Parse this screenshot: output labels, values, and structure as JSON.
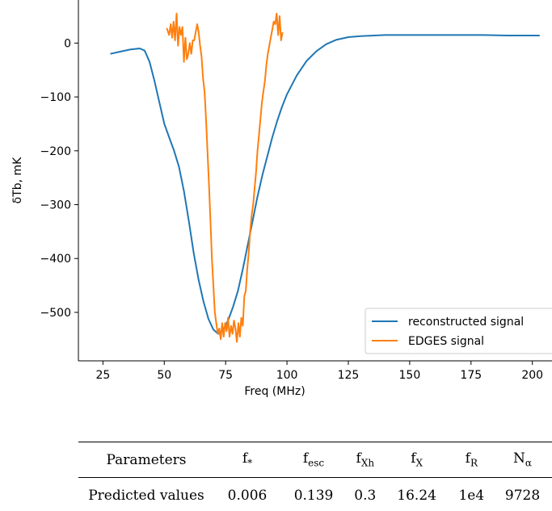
{
  "chart_data": {
    "type": "line",
    "title": "",
    "xlabel": "Freq (MHz)",
    "ylabel": "δTb, mK",
    "xlim": [
      15,
      208
    ],
    "ylim": [
      -590,
      80
    ],
    "xticks": [
      25,
      50,
      75,
      100,
      125,
      150,
      175,
      200
    ],
    "yticks": [
      0,
      -100,
      -200,
      -300,
      -400,
      -500
    ],
    "ytick_labels": [
      "0",
      "−100",
      "−200",
      "−300",
      "−400",
      "−500"
    ],
    "legend": {
      "position": "lower-right",
      "entries": [
        "reconstructed signal",
        "EDGES signal"
      ]
    },
    "series": [
      {
        "name": "reconstructed signal",
        "color": "#1f77b4",
        "x": [
          28,
          32,
          36,
          40,
          42,
          44,
          46,
          48,
          50,
          52,
          54,
          56,
          58,
          60,
          62,
          64,
          66,
          68,
          70,
          72,
          74,
          76,
          78,
          80,
          82,
          84,
          86,
          88,
          90,
          92,
          94,
          96,
          98,
          100,
          104,
          108,
          112,
          116,
          120,
          125,
          130,
          140,
          150,
          160,
          170,
          180,
          190,
          200,
          203
        ],
        "y": [
          -20,
          -16,
          -12,
          -10,
          -14,
          -35,
          -70,
          -110,
          -150,
          -175,
          -200,
          -230,
          -275,
          -330,
          -390,
          -440,
          -480,
          -512,
          -532,
          -540,
          -533,
          -515,
          -490,
          -460,
          -420,
          -375,
          -330,
          -285,
          -245,
          -210,
          -175,
          -145,
          -118,
          -95,
          -60,
          -33,
          -15,
          -2,
          6,
          11,
          13,
          15,
          15,
          15,
          15,
          15,
          14,
          14,
          14
        ]
      },
      {
        "name": "EDGES signal",
        "color": "#ff7f0e",
        "x": [
          51,
          52,
          52.6,
          53.2,
          53.8,
          54.4,
          55,
          55.6,
          56.2,
          56.8,
          57.4,
          58,
          58.6,
          59.2,
          59.8,
          60.4,
          61,
          61.6,
          62.2,
          62.8,
          63.4,
          64,
          64.6,
          65.2,
          65.8,
          66.4,
          67,
          67.6,
          68.2,
          68.8,
          69.4,
          70,
          70.6,
          71.2,
          71.8,
          72.4,
          73,
          73.6,
          74.2,
          74.8,
          75.4,
          76,
          76.6,
          77.2,
          77.8,
          78.4,
          79,
          79.6,
          80.2,
          80.8,
          81.4,
          82,
          82.6,
          83.2,
          83.8,
          84.4,
          85,
          85.6,
          86.2,
          86.8,
          87.4,
          88,
          88.6,
          89.2,
          89.8,
          90.4,
          91,
          91.6,
          92.2,
          92.8,
          93.4,
          94,
          94.6,
          95.2,
          95.8,
          96.4,
          97,
          97.6,
          98.2
        ],
        "y": [
          28,
          15,
          35,
          10,
          40,
          5,
          55,
          -5,
          30,
          15,
          30,
          -35,
          10,
          -30,
          -20,
          0,
          -20,
          5,
          5,
          20,
          35,
          20,
          -5,
          -25,
          -65,
          -90,
          -140,
          -200,
          -260,
          -330,
          -400,
          -450,
          -500,
          -520,
          -540,
          -530,
          -550,
          -520,
          -545,
          -520,
          -535,
          -510,
          -545,
          -525,
          -540,
          -515,
          -530,
          -555,
          -520,
          -545,
          -510,
          -525,
          -470,
          -460,
          -420,
          -390,
          -350,
          -320,
          -300,
          -270,
          -240,
          -200,
          -170,
          -140,
          -110,
          -90,
          -70,
          -40,
          -20,
          -5,
          10,
          25,
          40,
          35,
          55,
          15,
          50,
          5,
          20
        ]
      }
    ]
  },
  "table": {
    "headers": [
      "Parameters",
      "f",
      "f",
      "f",
      "f",
      "f",
      "N"
    ],
    "header_subs": [
      "",
      "*",
      "esc",
      "Xh",
      "X",
      "R",
      "α"
    ],
    "row_label": "Predicted values",
    "values": [
      "0.006",
      "0.139",
      "0.3",
      "16.24",
      "1e4",
      "9728"
    ]
  }
}
